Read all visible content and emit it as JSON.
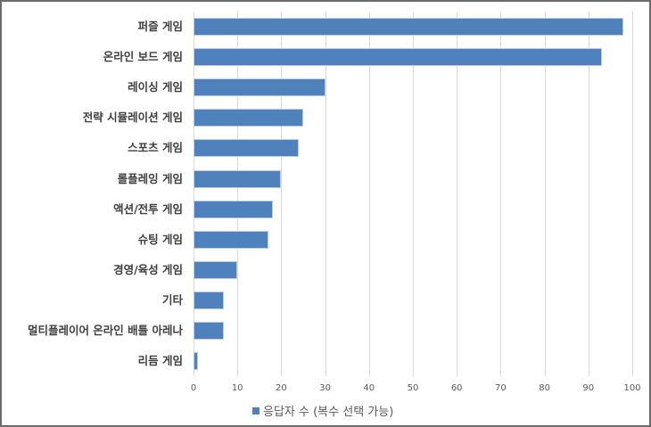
{
  "chart_data": {
    "type": "bar",
    "orientation": "horizontal",
    "title": "",
    "xlabel": "",
    "ylabel": "",
    "categories": [
      "퍼즐 게임",
      "온라인 보드 게임",
      "레이싱 게임",
      "전략 시뮬레이션 게임",
      "스포츠 게임",
      "롤플레잉 게임",
      "액션/전투 게임",
      "슈팅 게임",
      "경영/육성 게임",
      "기타",
      "멀티플레이어 온라인 배틀 아레나",
      "리듬 게임"
    ],
    "series": [
      {
        "name": "응답자 수 (복수 선택 가능)",
        "color": "#4f81bd",
        "values": [
          98,
          93,
          30,
          25,
          24,
          20,
          18,
          17,
          10,
          7,
          7,
          1
        ]
      }
    ],
    "xlim": [
      0,
      100
    ],
    "xticks": [
      "0",
      "10",
      "20",
      "30",
      "40",
      "50",
      "60",
      "70",
      "80",
      "90",
      "100"
    ],
    "grid": true,
    "legend_position": "bottom"
  },
  "legend": {
    "label": "응답자 수 (복수 선택 가능)"
  }
}
